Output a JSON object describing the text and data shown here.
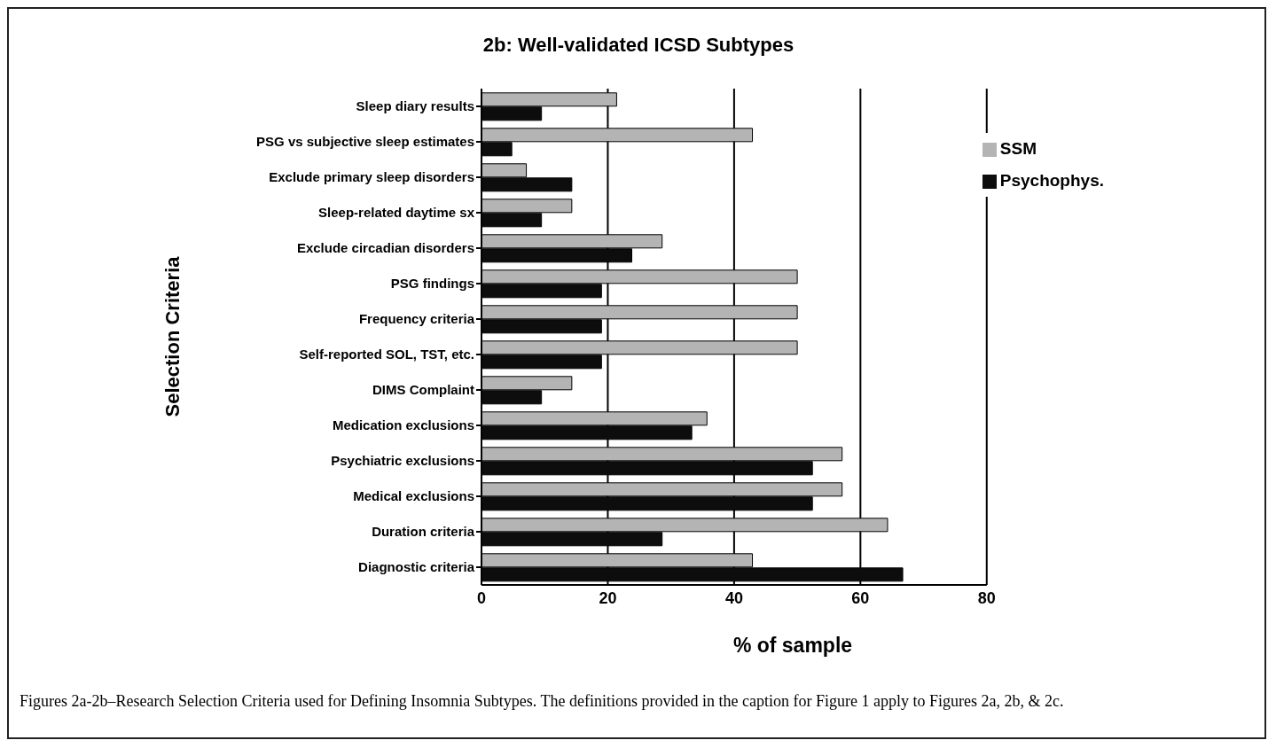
{
  "chart_data": {
    "type": "bar",
    "orientation": "horizontal",
    "title": "2b: Well-validated ICSD Subtypes",
    "xlabel": "% of sample",
    "ylabel": "Selection Criteria",
    "categories": [
      "Sleep diary results",
      "PSG vs subjective sleep estimates",
      "Exclude primary sleep disorders",
      "Sleep-related daytime sx",
      "Exclude circadian disorders",
      "PSG findings",
      "Frequency criteria",
      "Self-reported SOL, TST, etc.",
      "DIMS Complaint",
      "Medication exclusions",
      "Psychiatric exclusions",
      "Medical exclusions",
      "Duration criteria",
      "Diagnostic criteria"
    ],
    "series": [
      {
        "name": "SSM",
        "color": "#b4b4b4",
        "values": [
          21.4,
          42.9,
          7.1,
          14.3,
          28.6,
          50,
          50,
          50,
          14.3,
          35.7,
          57.1,
          57.1,
          64.3,
          42.9
        ]
      },
      {
        "name": "Psychophys.",
        "color": "#0d0d0d",
        "values": [
          9.5,
          4.8,
          14.3,
          9.5,
          23.8,
          19,
          19,
          19,
          9.5,
          33.3,
          52.4,
          52.4,
          28.6,
          66.7
        ]
      }
    ],
    "xlim": [
      0,
      80
    ],
    "xticks": [
      0,
      20,
      40,
      60,
      80
    ],
    "grid": "x",
    "legend": "top right",
    "annotations": [
      "Figures 2a-2b–Research Selection Criteria used for Defining Insomnia Subtypes. The definitions provided in the caption for Figure 1 apply to Figures 2a, 2b, & 2c."
    ]
  }
}
